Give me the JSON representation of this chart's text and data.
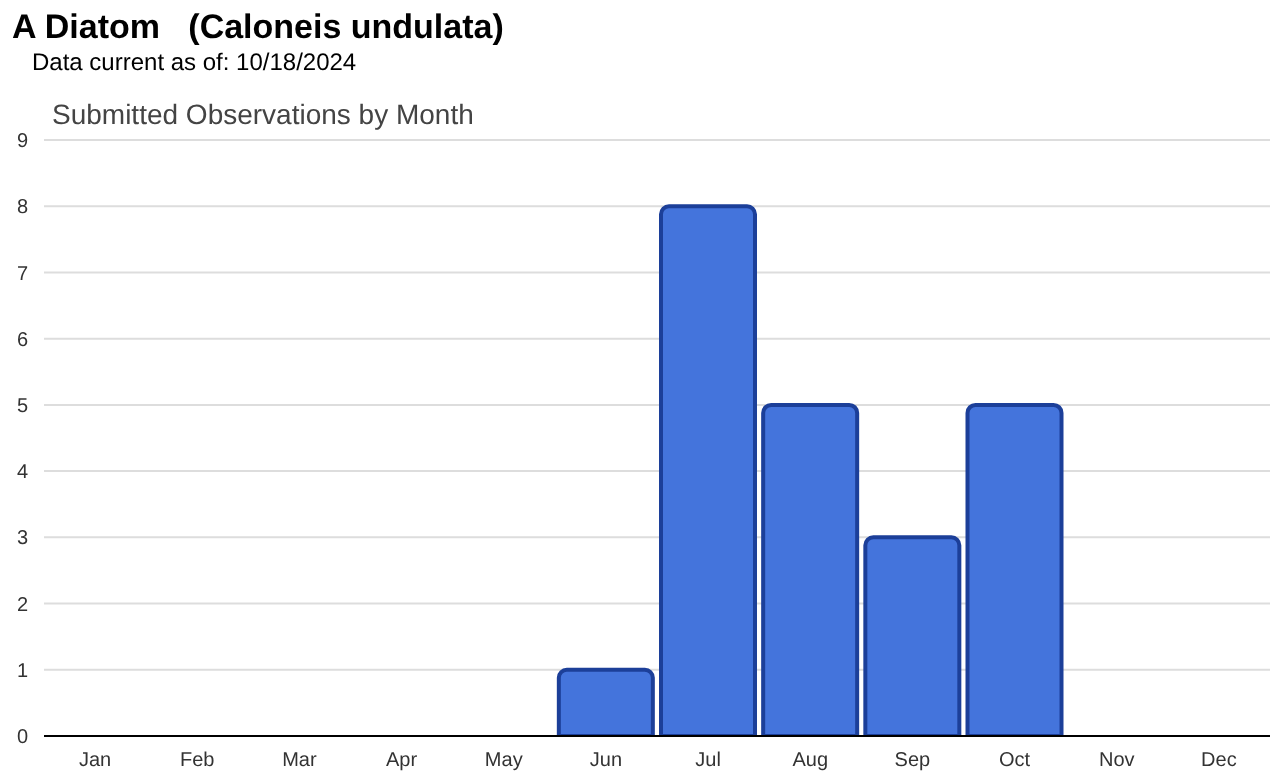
{
  "chart_data": {
    "type": "bar",
    "title": "A Diatom   (Caloneis undulata)",
    "subtitle": "Data current as of: 10/18/2024",
    "annotations": [
      "Submitted Observations by Month"
    ],
    "categories": [
      "Jan",
      "Feb",
      "Mar",
      "Apr",
      "May",
      "Jun",
      "Jul",
      "Aug",
      "Sep",
      "Oct",
      "Nov",
      "Dec"
    ],
    "values": [
      0,
      0,
      0,
      0,
      0,
      1,
      8,
      5,
      3,
      5,
      0,
      0
    ],
    "color": "#4474dc",
    "ylim": [
      0,
      9
    ],
    "yticks": [
      0,
      1,
      2,
      3,
      4,
      5,
      6,
      7,
      8,
      9
    ],
    "grid": "y"
  }
}
